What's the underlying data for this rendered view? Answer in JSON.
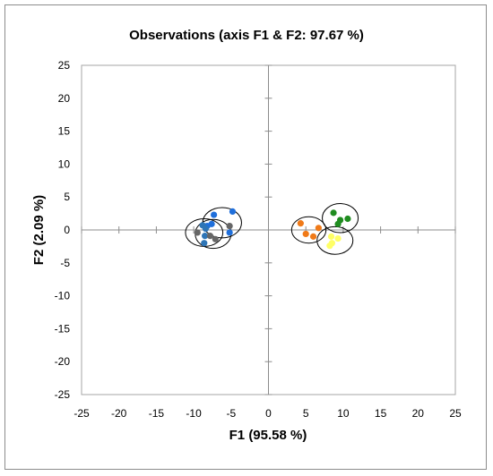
{
  "chart_data": {
    "type": "scatter",
    "title": "Observations (axis F1 & F2: 97.67 %)",
    "xlabel": "F1 (95.58 %)",
    "ylabel": "F2 (2.09 %)",
    "xlim": [
      -25,
      25
    ],
    "ylim": [
      -25,
      25
    ],
    "xticks": [
      -25,
      -20,
      -15,
      -10,
      -5,
      0,
      5,
      10,
      15,
      20,
      25
    ],
    "yticks": [
      -25,
      -20,
      -15,
      -10,
      -5,
      0,
      5,
      10,
      15,
      20,
      25
    ],
    "grid": false,
    "legend": "none",
    "series": [
      {
        "color": "#1f6fdb",
        "points": [
          [
            -4.8,
            2.8
          ],
          [
            -7.3,
            2.3
          ],
          [
            -8.2,
            0.6
          ],
          [
            -7.6,
            0.9
          ],
          [
            -5.2,
            -0.4
          ]
        ]
      },
      {
        "color": "#2e75b6",
        "points": [
          [
            -8.8,
            0.7
          ],
          [
            -8.4,
            0.2
          ],
          [
            -8.5,
            -0.9
          ],
          [
            -8.6,
            -2.0
          ]
        ]
      },
      {
        "color": "#666666",
        "points": [
          [
            -9.5,
            -0.4
          ],
          [
            -7.8,
            -0.9
          ],
          [
            -7.1,
            -1.4
          ],
          [
            -5.2,
            0.6
          ]
        ]
      },
      {
        "color": "#f07a18",
        "points": [
          [
            4.3,
            1.0
          ],
          [
            6.7,
            0.3
          ],
          [
            5.0,
            -0.6
          ],
          [
            6.0,
            -1.0
          ]
        ]
      },
      {
        "color": "#1f8c1f",
        "points": [
          [
            8.7,
            2.6
          ],
          [
            10.6,
            1.7
          ],
          [
            9.6,
            1.5
          ],
          [
            9.3,
            0.9
          ]
        ]
      },
      {
        "color": "#ffff66",
        "points": [
          [
            8.4,
            -1.0
          ],
          [
            9.3,
            -1.3
          ],
          [
            8.5,
            -2.0
          ],
          [
            8.2,
            -2.4
          ]
        ]
      }
    ],
    "ellipses": [
      {
        "cx": -6.2,
        "cy": 1.1,
        "rx": 2.6,
        "ry": 2.3
      },
      {
        "cx": -8.6,
        "cy": -0.4,
        "rx": 2.5,
        "ry": 2.1
      },
      {
        "cx": -7.4,
        "cy": -0.6,
        "rx": 2.4,
        "ry": 2.2
      },
      {
        "cx": 5.4,
        "cy": 0.0,
        "rx": 2.3,
        "ry": 2.0
      },
      {
        "cx": 9.6,
        "cy": 1.8,
        "rx": 2.4,
        "ry": 2.2
      },
      {
        "cx": 8.9,
        "cy": -1.6,
        "rx": 2.4,
        "ry": 2.1
      }
    ]
  }
}
